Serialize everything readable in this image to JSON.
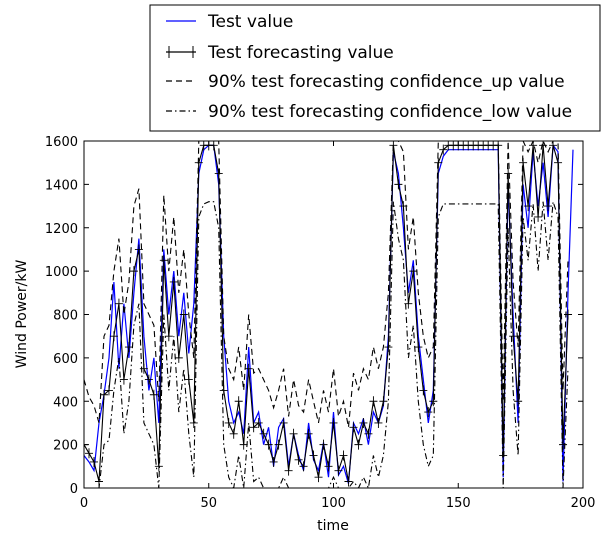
{
  "chart_data": {
    "type": "line",
    "title": "",
    "xlabel": "time",
    "ylabel": "Wind Power/kW",
    "xlim": [
      0,
      200
    ],
    "ylim": [
      0,
      1600
    ],
    "xticks": [
      0,
      50,
      100,
      150,
      200
    ],
    "yticks": [
      0,
      200,
      400,
      600,
      800,
      1000,
      1200,
      1400,
      1600
    ],
    "grid": false,
    "legend_position": "top, above plot",
    "series": [
      {
        "name": "Test value",
        "color": "#0000ff",
        "style": "solid",
        "x": [
          0,
          2,
          4,
          6,
          8,
          10,
          12,
          14,
          16,
          18,
          20,
          22,
          24,
          26,
          28,
          30,
          32,
          34,
          36,
          38,
          40,
          42,
          44,
          46,
          48,
          50,
          52,
          54,
          56,
          58,
          60,
          62,
          64,
          66,
          68,
          70,
          72,
          74,
          76,
          78,
          80,
          82,
          84,
          86,
          88,
          90,
          92,
          94,
          96,
          98,
          100,
          102,
          104,
          106,
          108,
          110,
          112,
          114,
          116,
          118,
          120,
          122,
          124,
          126,
          128,
          130,
          132,
          134,
          136,
          138,
          140,
          142,
          144,
          146,
          148,
          150,
          152,
          154,
          156,
          158,
          160,
          162,
          164,
          166,
          168,
          170,
          172,
          174,
          176,
          178,
          180,
          182,
          184,
          186,
          188,
          190,
          192,
          194,
          196
        ],
        "y": [
          150,
          120,
          80,
          300,
          430,
          600,
          950,
          550,
          850,
          600,
          900,
          1150,
          700,
          450,
          600,
          300,
          1100,
          800,
          1000,
          700,
          900,
          620,
          850,
          1450,
          1560,
          1580,
          1580,
          1400,
          700,
          400,
          300,
          350,
          250,
          650,
          300,
          350,
          200,
          280,
          100,
          280,
          320,
          100,
          250,
          150,
          80,
          300,
          130,
          80,
          210,
          50,
          350,
          60,
          100,
          20,
          300,
          250,
          320,
          200,
          350,
          300,
          380,
          700,
          1550,
          1450,
          1200,
          900,
          1050,
          700,
          500,
          300,
          450,
          1450,
          1530,
          1560,
          1560,
          1560,
          1560,
          1560,
          1560,
          1560,
          1560,
          1560,
          1560,
          1560,
          50,
          1400,
          800,
          300,
          1400,
          1200,
          1550,
          1300,
          1500,
          1250,
          1580,
          1550,
          30,
          900,
          1560
        ]
      },
      {
        "name": "Test forecasting value",
        "color": "#000000",
        "style": "solid-markers",
        "x": [
          0,
          2,
          4,
          6,
          8,
          10,
          12,
          14,
          16,
          18,
          20,
          22,
          24,
          26,
          28,
          30,
          32,
          34,
          36,
          38,
          40,
          42,
          44,
          46,
          48,
          50,
          52,
          54,
          56,
          58,
          60,
          62,
          64,
          66,
          68,
          70,
          72,
          74,
          76,
          78,
          80,
          82,
          84,
          86,
          88,
          90,
          92,
          94,
          96,
          98,
          100,
          102,
          104,
          106,
          108,
          110,
          112,
          114,
          116,
          118,
          120,
          122,
          124,
          126,
          128,
          130,
          132,
          134,
          136,
          138,
          140,
          142,
          144,
          146,
          148,
          150,
          152,
          154,
          156,
          158,
          160,
          162,
          164,
          166,
          168,
          170,
          172,
          174,
          176,
          178,
          180,
          182,
          184,
          186,
          188,
          190,
          192,
          194
        ],
        "y": [
          200,
          160,
          120,
          30,
          430,
          450,
          700,
          850,
          500,
          650,
          1000,
          1100,
          550,
          500,
          430,
          100,
          1050,
          700,
          950,
          600,
          800,
          500,
          300,
          1500,
          1580,
          1580,
          1580,
          1450,
          450,
          300,
          250,
          400,
          200,
          550,
          280,
          300,
          250,
          200,
          120,
          200,
          300,
          80,
          250,
          130,
          100,
          250,
          150,
          50,
          200,
          100,
          300,
          80,
          150,
          30,
          280,
          200,
          300,
          250,
          400,
          300,
          400,
          650,
          1580,
          1400,
          1300,
          850,
          1000,
          650,
          450,
          350,
          400,
          1500,
          1560,
          1580,
          1580,
          1580,
          1580,
          1580,
          1580,
          1580,
          1580,
          1580,
          1580,
          1580,
          150,
          1450,
          700,
          400,
          1500,
          1300,
          1580,
          1250,
          1580,
          1300,
          1580,
          1500,
          200,
          800
        ]
      },
      {
        "name": "90% test forecasting confidence_up value",
        "color": "#000000",
        "style": "dashed",
        "x": [
          0,
          2,
          4,
          6,
          8,
          10,
          12,
          14,
          16,
          18,
          20,
          22,
          24,
          26,
          28,
          30,
          32,
          34,
          36,
          38,
          40,
          42,
          44,
          46,
          48,
          50,
          52,
          54,
          56,
          58,
          60,
          62,
          64,
          66,
          68,
          70,
          72,
          74,
          76,
          78,
          80,
          82,
          84,
          86,
          88,
          90,
          92,
          94,
          96,
          98,
          100,
          102,
          104,
          106,
          108,
          110,
          112,
          114,
          116,
          118,
          120,
          122,
          124,
          126,
          128,
          130,
          132,
          134,
          136,
          138,
          140,
          142,
          144,
          146,
          148,
          150,
          152,
          154,
          156,
          158,
          160,
          162,
          164,
          166,
          168,
          170,
          172,
          174,
          176,
          178,
          180,
          182,
          184,
          186,
          188,
          190,
          192,
          194
        ],
        "y": [
          500,
          420,
          380,
          300,
          700,
          750,
          1000,
          1150,
          800,
          950,
          1300,
          1380,
          850,
          800,
          750,
          400,
          1350,
          1000,
          1250,
          900,
          1100,
          800,
          600,
          1600,
          1600,
          1600,
          1600,
          1600,
          700,
          550,
          500,
          650,
          450,
          800,
          530,
          550,
          500,
          450,
          370,
          450,
          550,
          330,
          500,
          380,
          350,
          500,
          400,
          300,
          450,
          350,
          550,
          330,
          400,
          280,
          530,
          450,
          550,
          500,
          650,
          550,
          650,
          900,
          1600,
          1600,
          1550,
          1100,
          1250,
          900,
          700,
          600,
          650,
          1600,
          1600,
          1600,
          1600,
          1600,
          1600,
          1600,
          1600,
          1600,
          1600,
          1600,
          1600,
          1600,
          400,
          1600,
          950,
          650,
          1600,
          1550,
          1600,
          1500,
          1600,
          1550,
          1600,
          1600,
          450,
          1050
        ]
      },
      {
        "name": "90% test forecasting confidence_low value",
        "color": "#000000",
        "style": "dashdot",
        "x": [
          0,
          2,
          4,
          6,
          8,
          10,
          12,
          14,
          16,
          18,
          20,
          22,
          24,
          26,
          28,
          30,
          32,
          34,
          36,
          38,
          40,
          42,
          44,
          46,
          48,
          50,
          52,
          54,
          56,
          58,
          60,
          62,
          64,
          66,
          68,
          70,
          72,
          74,
          76,
          78,
          80,
          82,
          84,
          86,
          88,
          90,
          92,
          94,
          96,
          98,
          100,
          102,
          104,
          106,
          108,
          110,
          112,
          114,
          116,
          118,
          120,
          122,
          124,
          126,
          128,
          130,
          132,
          134,
          136,
          138,
          140,
          142,
          144,
          146,
          148,
          150,
          152,
          154,
          156,
          158,
          160,
          162,
          164,
          166,
          168,
          170,
          172,
          174,
          176,
          178,
          180,
          182,
          184,
          186,
          188,
          190,
          192,
          194
        ],
        "y": [
          0,
          0,
          0,
          0,
          200,
          220,
          450,
          600,
          250,
          400,
          750,
          850,
          300,
          250,
          200,
          0,
          800,
          450,
          700,
          350,
          550,
          250,
          50,
          1250,
          1310,
          1320,
          1320,
          1200,
          200,
          50,
          0,
          150,
          0,
          300,
          30,
          50,
          0,
          0,
          0,
          0,
          50,
          0,
          0,
          0,
          0,
          0,
          0,
          0,
          0,
          0,
          50,
          0,
          0,
          0,
          30,
          0,
          50,
          0,
          150,
          50,
          150,
          400,
          1320,
          1150,
          1050,
          600,
          750,
          400,
          200,
          100,
          150,
          1250,
          1310,
          1310,
          1310,
          1310,
          1310,
          1310,
          1310,
          1310,
          1310,
          1310,
          1310,
          1310,
          0,
          1200,
          450,
          150,
          1250,
          1050,
          1310,
          1000,
          1320,
          1050,
          1320,
          1250,
          0,
          550
        ]
      }
    ]
  }
}
